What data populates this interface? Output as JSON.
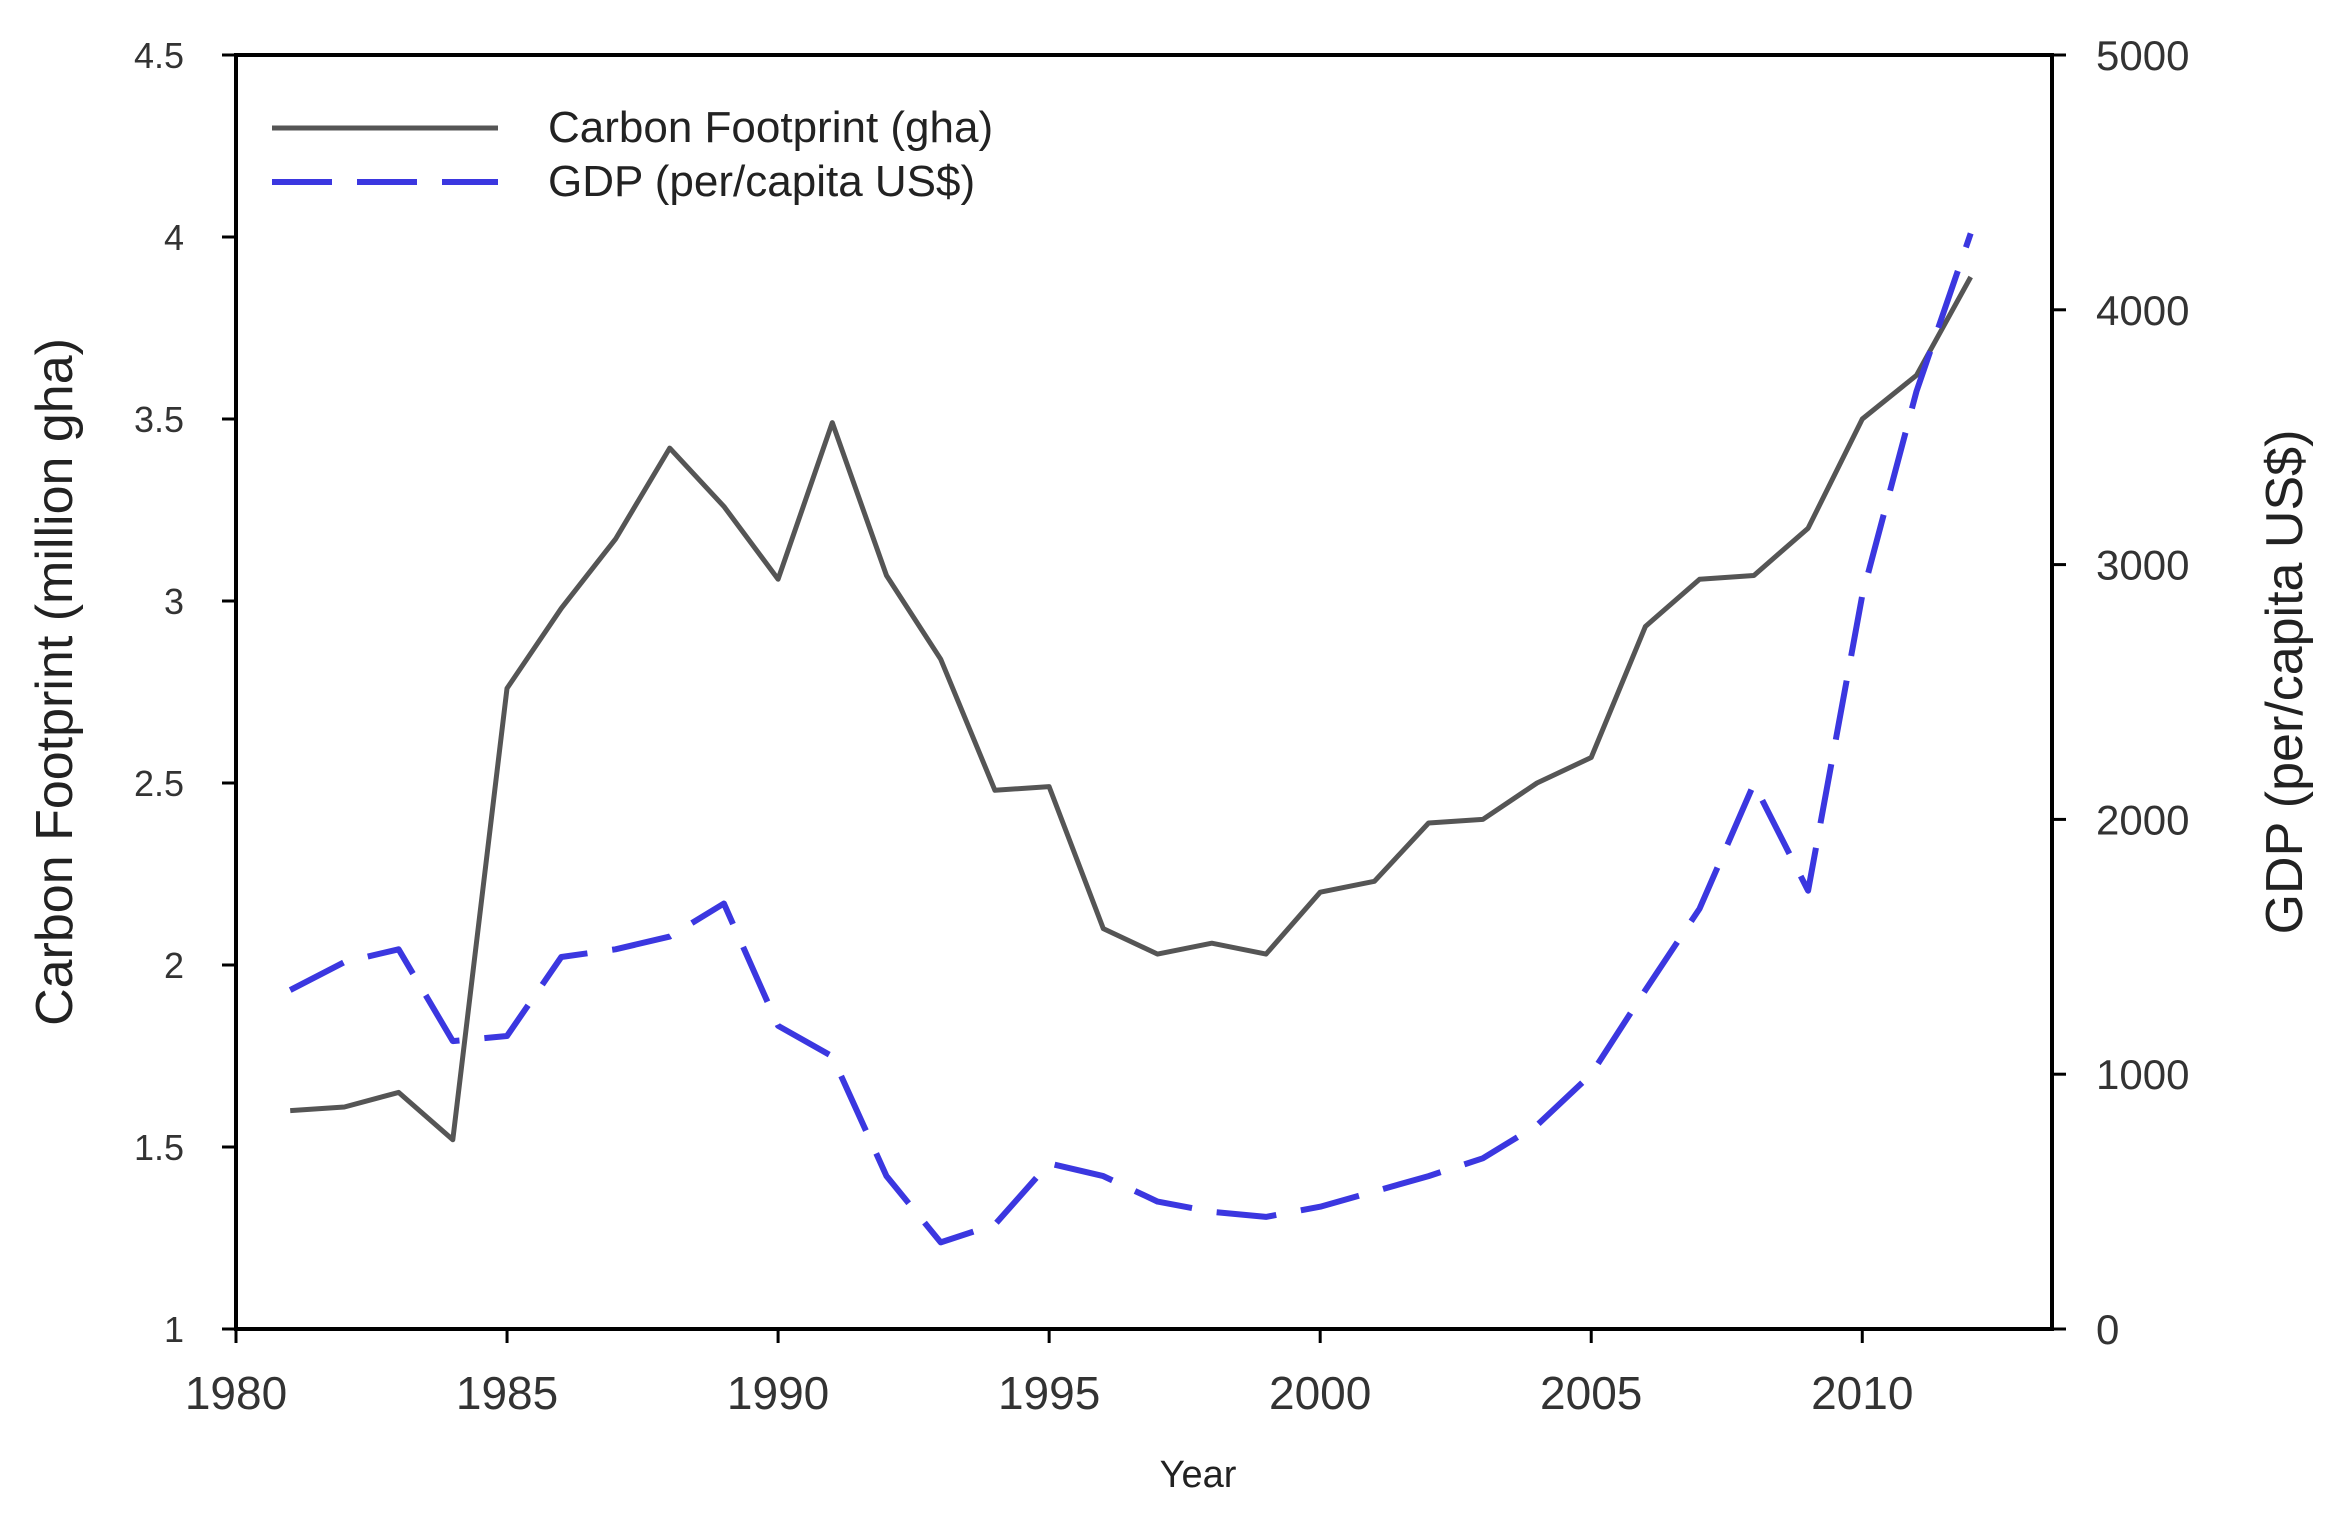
{
  "chart_data": {
    "type": "line",
    "title": "",
    "xlabel": "Year",
    "ylabel": "Carbon Footprint (million gha)",
    "y2label": "GDP (per/capita US$)",
    "xlim": [
      1980,
      2013.5
    ],
    "ylim": [
      1,
      4.5
    ],
    "y2lim": [
      0,
      5000
    ],
    "x_ticks": [
      1980,
      1985,
      1990,
      1995,
      2000,
      2005,
      2010
    ],
    "y_ticks": [
      "1",
      "1.5",
      "2",
      "2.5",
      "3",
      "3.5",
      "4",
      "4.5"
    ],
    "y2_ticks": [
      "0",
      "1000",
      "2000",
      "3000",
      "4000",
      "5000"
    ],
    "grid": false,
    "legend_position": "top-left",
    "series": [
      {
        "name": "Carbon Footprint (gha)",
        "axis": "left",
        "style": "solid",
        "color": "#555555",
        "x": [
          1981,
          1982,
          1983,
          1984,
          1985,
          1986,
          1987,
          1988,
          1989,
          1990,
          1991,
          1992,
          1993,
          1994,
          1995,
          1996,
          1997,
          1998,
          1999,
          2000,
          2001,
          2002,
          2003,
          2004,
          2005,
          2006,
          2007,
          2008,
          2009,
          2010,
          2011,
          2012
        ],
        "values": [
          1.6,
          1.61,
          1.65,
          1.52,
          2.76,
          2.98,
          3.17,
          3.42,
          3.26,
          3.06,
          3.49,
          3.07,
          2.84,
          2.48,
          2.49,
          2.1,
          2.03,
          2.06,
          2.03,
          2.2,
          2.23,
          2.39,
          2.4,
          2.5,
          2.57,
          2.93,
          3.06,
          3.07,
          3.2,
          3.5,
          3.62,
          3.89
        ]
      },
      {
        "name": "GDP (per/capita US$)",
        "axis": "right",
        "style": "dashed",
        "color": "#3b37e0",
        "x": [
          1981,
          1982,
          1983,
          1984,
          1985,
          1986,
          1987,
          1988,
          1989,
          1990,
          1991,
          1992,
          1993,
          1994,
          1995,
          1996,
          1997,
          1998,
          1999,
          2000,
          2001,
          2002,
          2003,
          2004,
          2005,
          2006,
          2007,
          2008,
          2009,
          2010,
          2011,
          2012
        ],
        "values": [
          1330,
          1440,
          1490,
          1130,
          1150,
          1460,
          1490,
          1540,
          1670,
          1190,
          1070,
          600,
          340,
          410,
          650,
          600,
          500,
          460,
          440,
          480,
          540,
          600,
          670,
          800,
          1000,
          1330,
          1650,
          2140,
          1720,
          2880,
          3680,
          4300
        ]
      }
    ]
  }
}
